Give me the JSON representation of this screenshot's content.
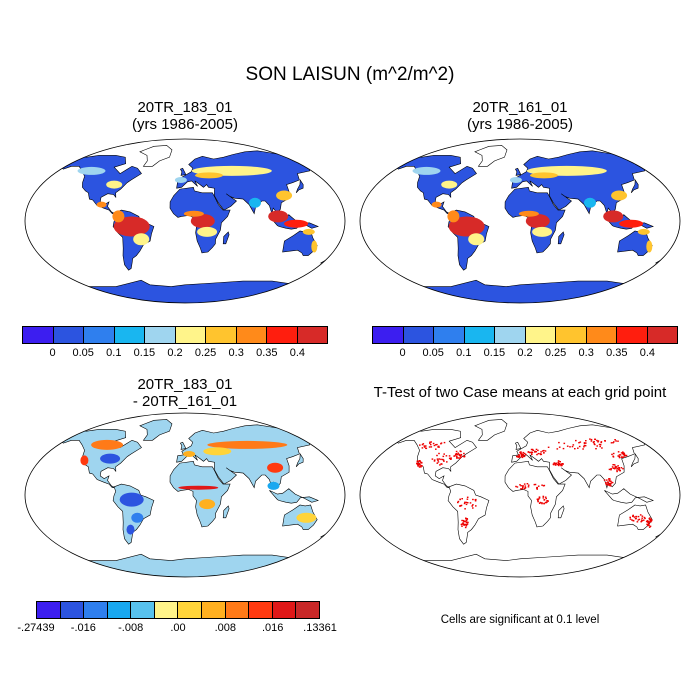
{
  "title": "SON LAISUN (m^2/m^2)",
  "panels": [
    {
      "title_line1": "20TR_183_01",
      "title_line2": "(yrs 1986-2005)",
      "kind": "field"
    },
    {
      "title_line1": "20TR_161_01",
      "title_line2": "(yrs 1986-2005)",
      "kind": "field"
    },
    {
      "title_line1": "20TR_183_01",
      "title_line2": "- 20TR_161_01",
      "kind": "diff"
    },
    {
      "title_line1": "T-Test of two Case means at each grid point",
      "kind": "ttest",
      "note": "Cells are significant at 0.1 level"
    }
  ],
  "colorbar_field": {
    "colors": [
      "#3c1ef0",
      "#2c54e0",
      "#2f7fee",
      "#19b6f0",
      "#9fd5ef",
      "#fff48a",
      "#ffc42e",
      "#ff8a1a",
      "#ff1e0e",
      "#d72a28"
    ],
    "labels": [
      "0",
      "0.05",
      "0.1",
      "0.15",
      "0.2",
      "0.25",
      "0.3",
      "0.35",
      "0.4"
    ]
  },
  "colorbar_diff": {
    "colors": [
      "#3c1ef0",
      "#2c54e0",
      "#2f7fee",
      "#19a8f0",
      "#58c2ee",
      "#fff48a",
      "#ffd43a",
      "#ffb020",
      "#ff7a18",
      "#ff3a10",
      "#e01818",
      "#c82828"
    ],
    "labels": [
      "-.27439",
      "-.016",
      "-.008",
      ".00",
      ".008",
      ".016",
      ".13361"
    ]
  },
  "significance_color": "#ee0000"
}
